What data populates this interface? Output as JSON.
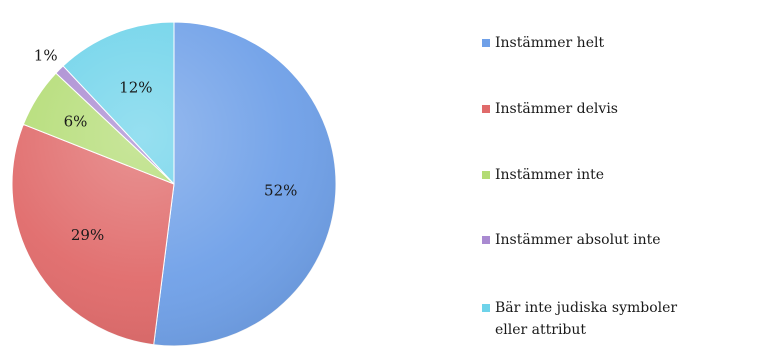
{
  "chart_data": {
    "type": "pie",
    "title": "",
    "legend_position": "right",
    "slices": [
      {
        "label": "Instämmer helt",
        "value": 52,
        "display": "52%",
        "color": "#6fa0e8"
      },
      {
        "label": "Instämmer delvis",
        "value": 29,
        "display": "29%",
        "color": "#e06a6a"
      },
      {
        "label": "Instämmer inte",
        "value": 6,
        "display": "6%",
        "color": "#b3dc74"
      },
      {
        "label": "Instämmer absolut inte",
        "value": 1,
        "display": "1%",
        "color": "#a98ad1"
      },
      {
        "label": "Bär inte judiska symboler eller attribut",
        "value": 12,
        "display": "12%",
        "color": "#6ed3ea"
      }
    ]
  }
}
